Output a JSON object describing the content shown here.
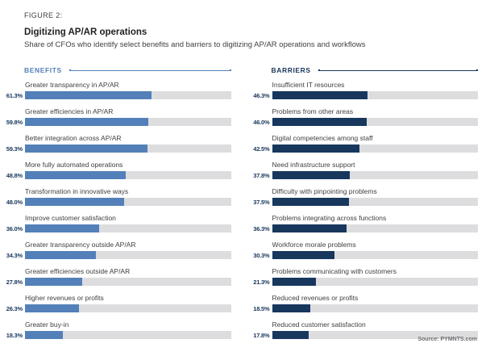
{
  "figure_label": "FIGURE 2:",
  "title": "Digitizing AP/AR operations",
  "subtitle": "Share of CFOs who identify select benefits and barriers to digitizing AP/AR operations and workflows",
  "source": "Source: PYMNTS.com",
  "colors": {
    "benefits_bar": "#5380b8",
    "barriers_bar": "#17375d",
    "track": "#dddddf",
    "percent_label": "#17375d",
    "item_label": "#414042",
    "title_text": "#231f20",
    "source_text": "#6d6e71"
  },
  "chart_data": {
    "type": "bar",
    "orientation": "horizontal",
    "value_unit": "percent",
    "xlim": [
      0,
      100
    ],
    "grid": false,
    "legend": false,
    "title": "Digitizing AP/AR operations",
    "subtitle": "Share of CFOs who identify select benefits and barriers to digitizing AP/AR operations and workflows",
    "groups": [
      {
        "name": "BENEFITS",
        "color": "#5380b8",
        "items": [
          {
            "label": "Greater transparency in AP/AR",
            "value": 61.3,
            "display": "61.3%"
          },
          {
            "label": "Greater efficiencies in AP/AR",
            "value": 59.8,
            "display": "59.8%"
          },
          {
            "label": "Better integration across AP/AR",
            "value": 59.3,
            "display": "59.3%"
          },
          {
            "label": "More fully automated operations",
            "value": 48.8,
            "display": "48.8%"
          },
          {
            "label": "Transformation in innovative ways",
            "value": 48.0,
            "display": "48.0%"
          },
          {
            "label": "Improve customer satisfaction",
            "value": 36.0,
            "display": "36.0%"
          },
          {
            "label": "Greater transparency outside AP/AR",
            "value": 34.3,
            "display": "34.3%"
          },
          {
            "label": "Greater efficiencies outside AP/AR",
            "value": 27.8,
            "display": "27.8%"
          },
          {
            "label": "Higher revenues or profits",
            "value": 26.3,
            "display": "26.3%"
          },
          {
            "label": "Greater buy-in",
            "value": 18.3,
            "display": "18.3%"
          }
        ]
      },
      {
        "name": "BARRIERS",
        "color": "#17375d",
        "items": [
          {
            "label": "Insufficient IT resources",
            "value": 46.3,
            "display": "46.3%"
          },
          {
            "label": "Problems from other areas",
            "value": 46.0,
            "display": "46.0%"
          },
          {
            "label": "Digital competencies among staff",
            "value": 42.5,
            "display": "42.5%"
          },
          {
            "label": "Need infrastructure support",
            "value": 37.8,
            "display": "37.8%"
          },
          {
            "label": "Difficulty with pinpointing problems",
            "value": 37.5,
            "display": "37.5%"
          },
          {
            "label": "Problems integrating across functions",
            "value": 36.3,
            "display": "36.3%"
          },
          {
            "label": "Workforce morale problems",
            "value": 30.3,
            "display": "30.3%"
          },
          {
            "label": "Problems communicating with customers",
            "value": 21.3,
            "display": "21.3%"
          },
          {
            "label": "Reduced revenues or profits",
            "value": 18.5,
            "display": "18.5%"
          },
          {
            "label": "Reduced customer satisfaction",
            "value": 17.8,
            "display": "17.8%"
          }
        ]
      }
    ]
  }
}
